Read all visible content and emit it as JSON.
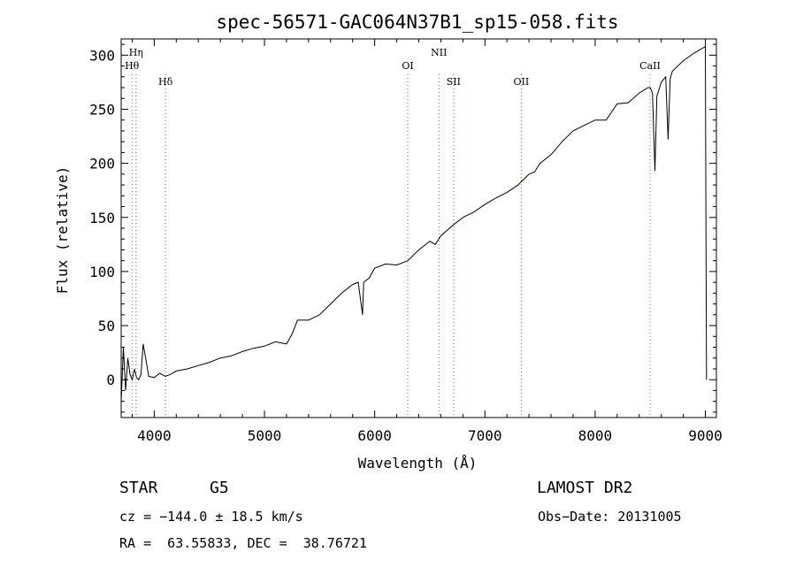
{
  "chart_data": {
    "type": "line",
    "title": "spec-56571-GAC064N37B1_sp15-058.fits",
    "xlabel": "Wavelength (Å)",
    "ylabel": "Flux (relative)",
    "xlim": [
      3700,
      9100
    ],
    "ylim": [
      -35,
      315
    ],
    "xticks": [
      4000,
      5000,
      6000,
      7000,
      8000,
      9000
    ],
    "yticks": [
      0,
      50,
      100,
      150,
      200,
      250,
      300
    ],
    "grid": false,
    "series": [
      {
        "x": [
          3700,
          3720,
          3740,
          3760,
          3780,
          3800,
          3820,
          3840,
          3860,
          3880,
          3900,
          3950,
          4000,
          4050,
          4100,
          4150,
          4200,
          4300,
          4400,
          4500,
          4600,
          4700,
          4800,
          4900,
          5000,
          5100,
          5200,
          5250,
          5300,
          5400,
          5500,
          5600,
          5700,
          5800,
          5850,
          5890,
          5900,
          5950,
          6000,
          6100,
          6200,
          6300,
          6400,
          6500,
          6550,
          6600,
          6700,
          6800,
          6900,
          7000,
          7100,
          7200,
          7300,
          7400,
          7450,
          7500,
          7600,
          7700,
          7800,
          7900,
          8000,
          8100,
          8200,
          8300,
          8400,
          8480,
          8500,
          8520,
          8542,
          8560,
          8600,
          8640,
          8662,
          8680,
          8700,
          8800,
          8900,
          9000,
          9010
        ],
        "y": [
          -20,
          30,
          -10,
          20,
          5,
          0,
          10,
          2,
          0,
          5,
          33,
          3,
          2,
          6,
          3,
          5,
          8,
          10,
          13,
          16,
          20,
          22,
          26,
          29,
          31,
          35,
          33,
          42,
          55,
          55,
          60,
          70,
          80,
          88,
          90,
          60,
          90,
          94,
          103,
          107,
          106,
          110,
          120,
          128,
          125,
          133,
          142,
          150,
          155,
          162,
          168,
          173,
          180,
          190,
          192,
          200,
          208,
          220,
          230,
          235,
          240,
          240,
          255,
          256,
          265,
          270,
          270,
          265,
          193,
          262,
          275,
          280,
          222,
          278,
          285,
          295,
          302,
          308,
          0
        ]
      }
    ],
    "lines": [
      {
        "label": "Hη",
        "wavelength": 3835,
        "row": 0
      },
      {
        "label": "Hθ",
        "wavelength": 3798,
        "row": 1
      },
      {
        "label": "Hδ",
        "wavelength": 4102,
        "row": 2
      },
      {
        "label": "OI",
        "wavelength": 6300,
        "row": 1
      },
      {
        "label": "NII",
        "wavelength": 6583,
        "row": 0
      },
      {
        "label": "SII",
        "wavelength": 6716,
        "row": 2
      },
      {
        "label": "OII",
        "wavelength": 7330,
        "row": 2
      },
      {
        "label": "CaII",
        "wavelength": 8498,
        "row": 1
      }
    ]
  },
  "info": {
    "class_label": "STAR",
    "subclass": "G5",
    "survey": "LAMOST DR2",
    "cz": "cz = −144.0 ± 18.5 km/s",
    "obs_date": "Obs−Date: 20131005",
    "coords": "RA =  63.55833, DEC =  38.76721"
  },
  "colors": {
    "line": "#000000",
    "marker_lines": "#dd4444"
  }
}
